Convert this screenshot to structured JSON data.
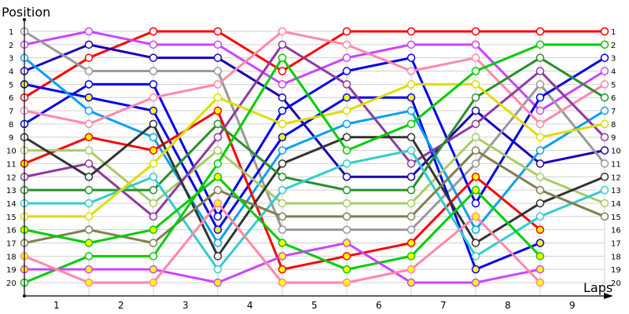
{
  "chart_data": {
    "type": "line",
    "title": "",
    "ylabel": "Position",
    "xlabel": "Laps",
    "x": [
      0,
      1,
      2,
      3,
      4,
      5,
      6,
      7,
      8,
      9
    ],
    "x_tick_labels": [
      "1",
      "2",
      "3",
      "4",
      "5",
      "6",
      "7",
      "8",
      "9"
    ],
    "y_tick_labels": [
      "1",
      "2",
      "3",
      "4",
      "5",
      "6",
      "7",
      "8",
      "9",
      "10",
      "11",
      "12",
      "13",
      "14",
      "15",
      "16",
      "17",
      "18",
      "19",
      "20"
    ],
    "ylim": [
      1,
      20
    ],
    "y_inverted": true,
    "grid": true,
    "legend": "none",
    "series": [
      {
        "name": "red",
        "color": "#ff0000",
        "marker_fill": "#ffffff",
        "values": [
          6,
          3,
          1,
          1,
          4,
          1,
          1,
          1,
          1,
          1
        ]
      },
      {
        "name": "magenta",
        "color": "#cc44ff",
        "marker_fill": "#ffffff",
        "values": [
          2,
          1,
          2,
          2,
          5,
          3,
          2,
          2,
          7,
          4
        ]
      },
      {
        "name": "navy",
        "color": "#1a00b3",
        "marker_fill": "#ffffff",
        "values": [
          4,
          2,
          3,
          3,
          6,
          12,
          12,
          7,
          11,
          10
        ]
      },
      {
        "name": "gray",
        "color": "#999999",
        "marker_fill": "#ffffff",
        "values": [
          1,
          4,
          4,
          4,
          16,
          16,
          16,
          11,
          5,
          11
        ]
      },
      {
        "name": "blue",
        "color": "#0000ee",
        "marker_fill": "#ffffff",
        "values": [
          8,
          5,
          5,
          15,
          7,
          4,
          3,
          14,
          6,
          3
        ]
      },
      {
        "name": "blue-yellow",
        "color": "#0000ee",
        "marker_fill": "#ffff00",
        "values": [
          5,
          6,
          7,
          16,
          9,
          6,
          6,
          19,
          17,
          null
        ]
      },
      {
        "name": "light-blue",
        "color": "#0aa0f0",
        "marker_fill": "#ffffff",
        "values": [
          3,
          7,
          9,
          17,
          10,
          8,
          7,
          16,
          10,
          7
        ]
      },
      {
        "name": "pink",
        "color": "#ff88aa",
        "marker_fill": "#ffffff",
        "values": [
          7,
          8,
          6,
          5,
          1,
          2,
          4,
          3,
          8,
          5
        ]
      },
      {
        "name": "red-yellow",
        "color": "#ff0000",
        "marker_fill": "#ffff00",
        "values": [
          11,
          9,
          10,
          7,
          19,
          18,
          17,
          12,
          16,
          null
        ]
      },
      {
        "name": "light-green",
        "color": "#a8cc66",
        "marker_fill": "#ffffff",
        "values": [
          10,
          10,
          14,
          10,
          14,
          14,
          14,
          9,
          12,
          14
        ]
      },
      {
        "name": "purple",
        "color": "#8e3a9e",
        "marker_fill": "#ffffff",
        "values": [
          12,
          11,
          15,
          9,
          2,
          5,
          11,
          8,
          4,
          9
        ]
      },
      {
        "name": "dark-gray",
        "color": "#333333",
        "marker_fill": "#ffffff",
        "values": [
          9,
          12,
          8,
          18,
          11,
          9,
          9,
          17,
          14,
          12
        ]
      },
      {
        "name": "dark-green",
        "color": "#2a8f2a",
        "marker_fill": "#ffffff",
        "values": [
          13,
          13,
          13,
          8,
          12,
          13,
          13,
          6,
          3,
          6
        ]
      },
      {
        "name": "cyan",
        "color": "#33cccc",
        "marker_fill": "#ffffff",
        "values": [
          14,
          14,
          12,
          19,
          13,
          11,
          10,
          18,
          15,
          13
        ]
      },
      {
        "name": "yellow",
        "color": "#dddd00",
        "marker_fill": "#ffffff",
        "values": [
          15,
          15,
          11,
          6,
          8,
          7,
          5,
          5,
          9,
          8
        ]
      },
      {
        "name": "olive",
        "color": "#808050",
        "marker_fill": "#ffffff",
        "values": [
          17,
          16,
          17,
          13,
          15,
          15,
          15,
          10,
          13,
          15
        ]
      },
      {
        "name": "green-yellow",
        "color": "#00cc00",
        "marker_fill": "#ffff00",
        "values": [
          16,
          17,
          16,
          12,
          17,
          19,
          18,
          13,
          18,
          null
        ]
      },
      {
        "name": "green",
        "color": "#00cc00",
        "marker_fill": "#ffffff",
        "values": [
          20,
          18,
          18,
          11,
          3,
          10,
          8,
          4,
          2,
          2
        ]
      },
      {
        "name": "magenta-yellow",
        "color": "#cc44ff",
        "marker_fill": "#ffff00",
        "values": [
          19,
          19,
          19,
          20,
          18,
          17,
          20,
          20,
          19,
          null
        ]
      },
      {
        "name": "pink-yellow",
        "color": "#ff88aa",
        "marker_fill": "#ffff00",
        "values": [
          18,
          20,
          20,
          14,
          20,
          20,
          19,
          15,
          20,
          null
        ]
      }
    ]
  }
}
